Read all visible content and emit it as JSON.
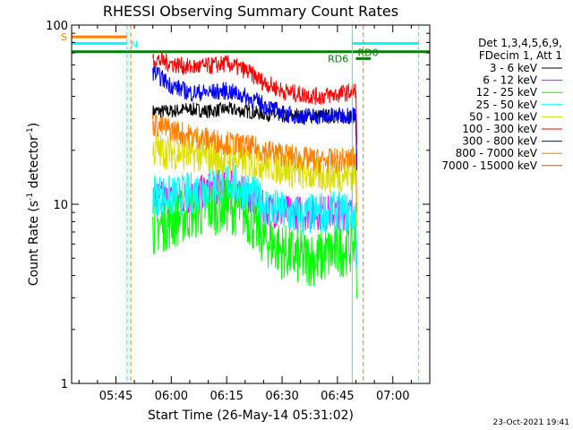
{
  "chart_data": {
    "type": "line",
    "title": "RHESSI Observing Summary Count Rates",
    "xlabel": "Start Time (26-May-14 05:31:02)",
    "ylabel": "Count Rate (s⁻¹ detector⁻¹)",
    "ylabel_parts": {
      "main": "Count Rate (s",
      "sup1": "-1",
      "mid": " detector",
      "sup2": "-1",
      "end": ")"
    },
    "yscale": "log",
    "ylim": [
      1,
      100
    ],
    "xlim": [
      "05:33",
      "07:10"
    ],
    "x_ticks": [
      "05:45",
      "06:00",
      "06:15",
      "06:30",
      "06:45",
      "07:00"
    ],
    "y_ticks": [
      "1",
      "10",
      "100"
    ],
    "grid": false,
    "legend_position": "right",
    "legend_header": [
      "Det 1,3,4,5,6,9,",
      "FDecim 1, Att 1"
    ],
    "series": [
      {
        "name": "3 - 6 keV",
        "color": "#000000",
        "x": [
          "05:55",
          "06:00",
          "06:05",
          "06:10",
          "06:15",
          "06:20",
          "06:25",
          "06:30",
          "06:35",
          "06:40",
          "06:45",
          "06:50"
        ],
        "values": [
          33,
          33,
          34,
          33,
          34,
          33,
          32,
          31,
          31,
          31,
          31,
          31
        ]
      },
      {
        "name": "6 - 12 keV",
        "color": "#ff00ff",
        "x": [
          "05:55",
          "06:00",
          "06:05",
          "06:10",
          "06:15",
          "06:20",
          "06:25",
          "06:30",
          "06:35",
          "06:40",
          "06:45",
          "06:50"
        ],
        "values": [
          11,
          10.5,
          11,
          12,
          13,
          11.5,
          9.5,
          9,
          9,
          9,
          9,
          9
        ]
      },
      {
        "name": "12 - 25 keV",
        "color": "#00ff00",
        "x": [
          "05:55",
          "06:00",
          "06:05",
          "06:10",
          "06:15",
          "06:20",
          "06:25",
          "06:30",
          "06:35",
          "06:40",
          "06:45",
          "06:50"
        ],
        "values": [
          7.5,
          8,
          9,
          9.5,
          10,
          9,
          6.5,
          5.5,
          5,
          5,
          5.5,
          6
        ]
      },
      {
        "name": "25 - 50 keV",
        "color": "#00ffff",
        "x": [
          "05:55",
          "06:00",
          "06:05",
          "06:10",
          "06:15",
          "06:20",
          "06:25",
          "06:30",
          "06:35",
          "06:40",
          "06:45",
          "06:50"
        ],
        "values": [
          11.5,
          11,
          11.5,
          12.5,
          13.5,
          12,
          10,
          9,
          8.5,
          9,
          9,
          9
        ]
      },
      {
        "name": "50 - 100 keV",
        "color": "#dddd00",
        "x": [
          "05:55",
          "06:00",
          "06:05",
          "06:10",
          "06:15",
          "06:20",
          "06:25",
          "06:30",
          "06:35",
          "06:40",
          "06:45",
          "06:50"
        ],
        "values": [
          20,
          19.5,
          19,
          18.5,
          18,
          17.5,
          17,
          16,
          15,
          14.5,
          14.5,
          15
        ]
      },
      {
        "name": "100 - 300 keV",
        "color": "#ff0000",
        "x": [
          "05:55",
          "06:00",
          "06:05",
          "06:10",
          "06:15",
          "06:20",
          "06:25",
          "06:30",
          "06:35",
          "06:40",
          "06:45",
          "06:50"
        ],
        "values": [
          65,
          61,
          58,
          59,
          61,
          56,
          48,
          43,
          41,
          40,
          41,
          43
        ]
      },
      {
        "name": "300 - 800 keV",
        "color": "#0000ff",
        "x": [
          "05:55",
          "06:00",
          "06:05",
          "06:10",
          "06:15",
          "06:20",
          "06:25",
          "06:30",
          "06:35",
          "06:40",
          "06:45",
          "06:50"
        ],
        "values": [
          55,
          46,
          42,
          42,
          43,
          40,
          36,
          32,
          31,
          31,
          31,
          32
        ]
      },
      {
        "name": "800 - 7000 keV",
        "color": "#ff8000",
        "x": [
          "05:55",
          "06:00",
          "06:05",
          "06:10",
          "06:15",
          "06:20",
          "06:25",
          "06:30",
          "06:35",
          "06:40",
          "06:45",
          "06:50"
        ],
        "values": [
          28,
          26,
          24,
          23,
          22,
          21,
          20,
          19,
          18,
          17.5,
          17.5,
          18
        ]
      },
      {
        "name": "7000 - 15000 keV",
        "color": "#996633",
        "x": [],
        "values": []
      }
    ],
    "annotations": {
      "flags": [
        {
          "label": "S",
          "color": "#ff8000",
          "x_range": [
            "05:33",
            "05:48"
          ],
          "level": 86
        },
        {
          "label": "N",
          "color": "#00ffff",
          "x_range": [
            "05:33",
            "05:48"
          ],
          "level": 79
        },
        {
          "label": "RD6",
          "color": "#008000",
          "x_range": [
            "05:33",
            "07:10"
          ],
          "level": 71
        },
        {
          "label": "RD0",
          "color": "#008000",
          "x_range": [
            "06:50",
            "06:54"
          ],
          "level": 65
        },
        {
          "label": "",
          "color": "#00ffff",
          "x_range": [
            "06:49",
            "07:07"
          ],
          "level": 79
        }
      ],
      "vlines": [
        {
          "x": "05:33",
          "color": "#00ffff",
          "style": "solid"
        },
        {
          "x": "05:48",
          "color": "#00ffff",
          "style": "dashed"
        },
        {
          "x": "05:49",
          "color": "#ff8000",
          "style": "dashed"
        },
        {
          "x": "06:49",
          "color": "#00ffff",
          "style": "solid"
        },
        {
          "x": "06:52",
          "color": "#ff8000",
          "style": "dashed"
        },
        {
          "x": "07:07",
          "color": "#00ffff",
          "style": "dashed"
        }
      ]
    }
  },
  "footer": {
    "timestamp": "23-Oct-2021 19:41"
  }
}
